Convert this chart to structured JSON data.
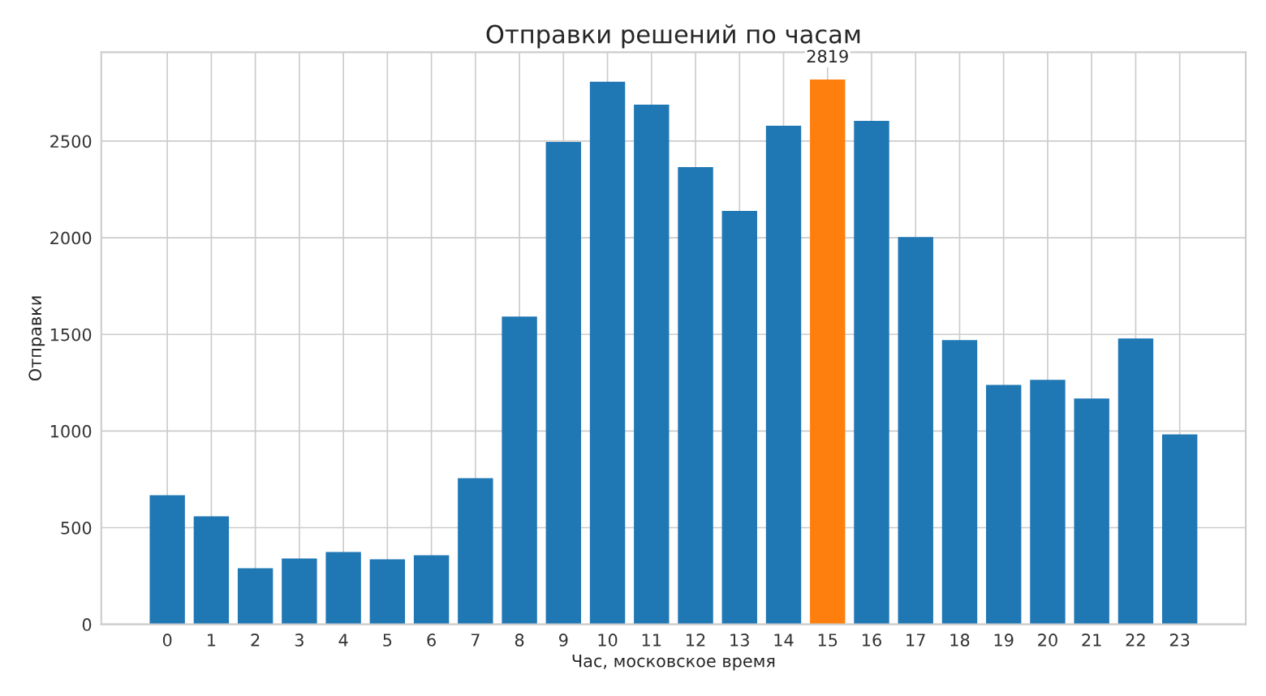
{
  "chart_data": {
    "type": "bar",
    "title": "Отправки решений по часам",
    "xlabel": "Час, московское время",
    "ylabel": "Отправки",
    "categories": [
      "0",
      "1",
      "2",
      "3",
      "4",
      "5",
      "6",
      "7",
      "8",
      "9",
      "10",
      "11",
      "12",
      "13",
      "14",
      "15",
      "16",
      "17",
      "18",
      "19",
      "20",
      "21",
      "22",
      "23"
    ],
    "values": [
      668,
      559,
      290,
      340,
      374,
      336,
      357,
      756,
      1592,
      2496,
      2807,
      2689,
      2366,
      2139,
      2580,
      2819,
      2605,
      2004,
      1471,
      1239,
      1265,
      1168,
      1479,
      983
    ],
    "colors": [
      "#1f77b4",
      "#1f77b4",
      "#1f77b4",
      "#1f77b4",
      "#1f77b4",
      "#1f77b4",
      "#1f77b4",
      "#1f77b4",
      "#1f77b4",
      "#1f77b4",
      "#1f77b4",
      "#1f77b4",
      "#1f77b4",
      "#1f77b4",
      "#1f77b4",
      "#ff7f0e",
      "#1f77b4",
      "#1f77b4",
      "#1f77b4",
      "#1f77b4",
      "#1f77b4",
      "#1f77b4",
      "#1f77b4",
      "#1f77b4"
    ],
    "ylim": [
      0,
      2960
    ],
    "yticks": [
      0,
      500,
      1000,
      1500,
      2000,
      2500
    ],
    "grid": true,
    "annotations": [
      {
        "text": "2819",
        "x": "15",
        "y": 2819
      }
    ]
  }
}
